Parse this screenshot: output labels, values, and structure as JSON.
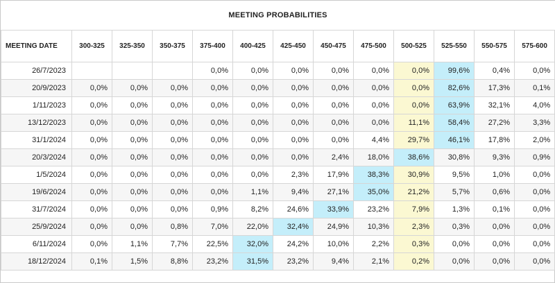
{
  "title": "MEETING PROBABILITIES",
  "date_header": "MEETING DATE",
  "columns": [
    "300-325",
    "325-350",
    "350-375",
    "375-400",
    "400-425",
    "425-450",
    "450-475",
    "475-500",
    "500-525",
    "525-550",
    "550-575",
    "575-600"
  ],
  "rows": [
    {
      "date": "26/7/2023",
      "values": [
        "",
        "",
        "",
        "0,0%",
        "0,0%",
        "0,0%",
        "0,0%",
        "0,0%",
        "0,0%",
        "99,6%",
        "0,4%",
        "0,0%"
      ],
      "current": 8,
      "max": 9
    },
    {
      "date": "20/9/2023",
      "values": [
        "0,0%",
        "0,0%",
        "0,0%",
        "0,0%",
        "0,0%",
        "0,0%",
        "0,0%",
        "0,0%",
        "0,0%",
        "82,6%",
        "17,3%",
        "0,1%"
      ],
      "current": 8,
      "max": 9
    },
    {
      "date": "1/11/2023",
      "values": [
        "0,0%",
        "0,0%",
        "0,0%",
        "0,0%",
        "0,0%",
        "0,0%",
        "0,0%",
        "0,0%",
        "0,0%",
        "63,9%",
        "32,1%",
        "4,0%"
      ],
      "current": 8,
      "max": 9
    },
    {
      "date": "13/12/2023",
      "values": [
        "0,0%",
        "0,0%",
        "0,0%",
        "0,0%",
        "0,0%",
        "0,0%",
        "0,0%",
        "0,0%",
        "11,1%",
        "58,4%",
        "27,2%",
        "3,3%"
      ],
      "current": 8,
      "max": 9
    },
    {
      "date": "31/1/2024",
      "values": [
        "0,0%",
        "0,0%",
        "0,0%",
        "0,0%",
        "0,0%",
        "0,0%",
        "0,0%",
        "4,4%",
        "29,7%",
        "46,1%",
        "17,8%",
        "2,0%"
      ],
      "current": 8,
      "max": 9
    },
    {
      "date": "20/3/2024",
      "values": [
        "0,0%",
        "0,0%",
        "0,0%",
        "0,0%",
        "0,0%",
        "0,0%",
        "2,4%",
        "18,0%",
        "38,6%",
        "30,8%",
        "9,3%",
        "0,9%"
      ],
      "current": 8,
      "max": 8
    },
    {
      "date": "1/5/2024",
      "values": [
        "0,0%",
        "0,0%",
        "0,0%",
        "0,0%",
        "0,0%",
        "2,3%",
        "17,9%",
        "38,3%",
        "30,9%",
        "9,5%",
        "1,0%",
        "0,0%"
      ],
      "current": 8,
      "max": 7
    },
    {
      "date": "19/6/2024",
      "values": [
        "0,0%",
        "0,0%",
        "0,0%",
        "0,0%",
        "1,1%",
        "9,4%",
        "27,1%",
        "35,0%",
        "21,2%",
        "5,7%",
        "0,6%",
        "0,0%"
      ],
      "current": 8,
      "max": 7
    },
    {
      "date": "31/7/2024",
      "values": [
        "0,0%",
        "0,0%",
        "0,0%",
        "0,9%",
        "8,2%",
        "24,6%",
        "33,9%",
        "23,2%",
        "7,9%",
        "1,3%",
        "0,1%",
        "0,0%"
      ],
      "current": 8,
      "max": 6
    },
    {
      "date": "25/9/2024",
      "values": [
        "0,0%",
        "0,0%",
        "0,8%",
        "7,0%",
        "22,0%",
        "32,4%",
        "24,9%",
        "10,3%",
        "2,3%",
        "0,3%",
        "0,0%",
        "0,0%"
      ],
      "current": 8,
      "max": 5
    },
    {
      "date": "6/11/2024",
      "values": [
        "0,0%",
        "1,1%",
        "7,7%",
        "22,5%",
        "32,0%",
        "24,2%",
        "10,0%",
        "2,2%",
        "0,3%",
        "0,0%",
        "0,0%",
        "0,0%"
      ],
      "current": 8,
      "max": 4
    },
    {
      "date": "18/12/2024",
      "values": [
        "0,1%",
        "1,5%",
        "8,8%",
        "23,2%",
        "31,5%",
        "23,2%",
        "9,4%",
        "2,1%",
        "0,2%",
        "0,0%",
        "0,0%",
        "0,0%"
      ],
      "current": 8,
      "max": 4
    }
  ],
  "colors": {
    "current_target": "#fbf8d2",
    "max_probability": "#c4eefa"
  }
}
